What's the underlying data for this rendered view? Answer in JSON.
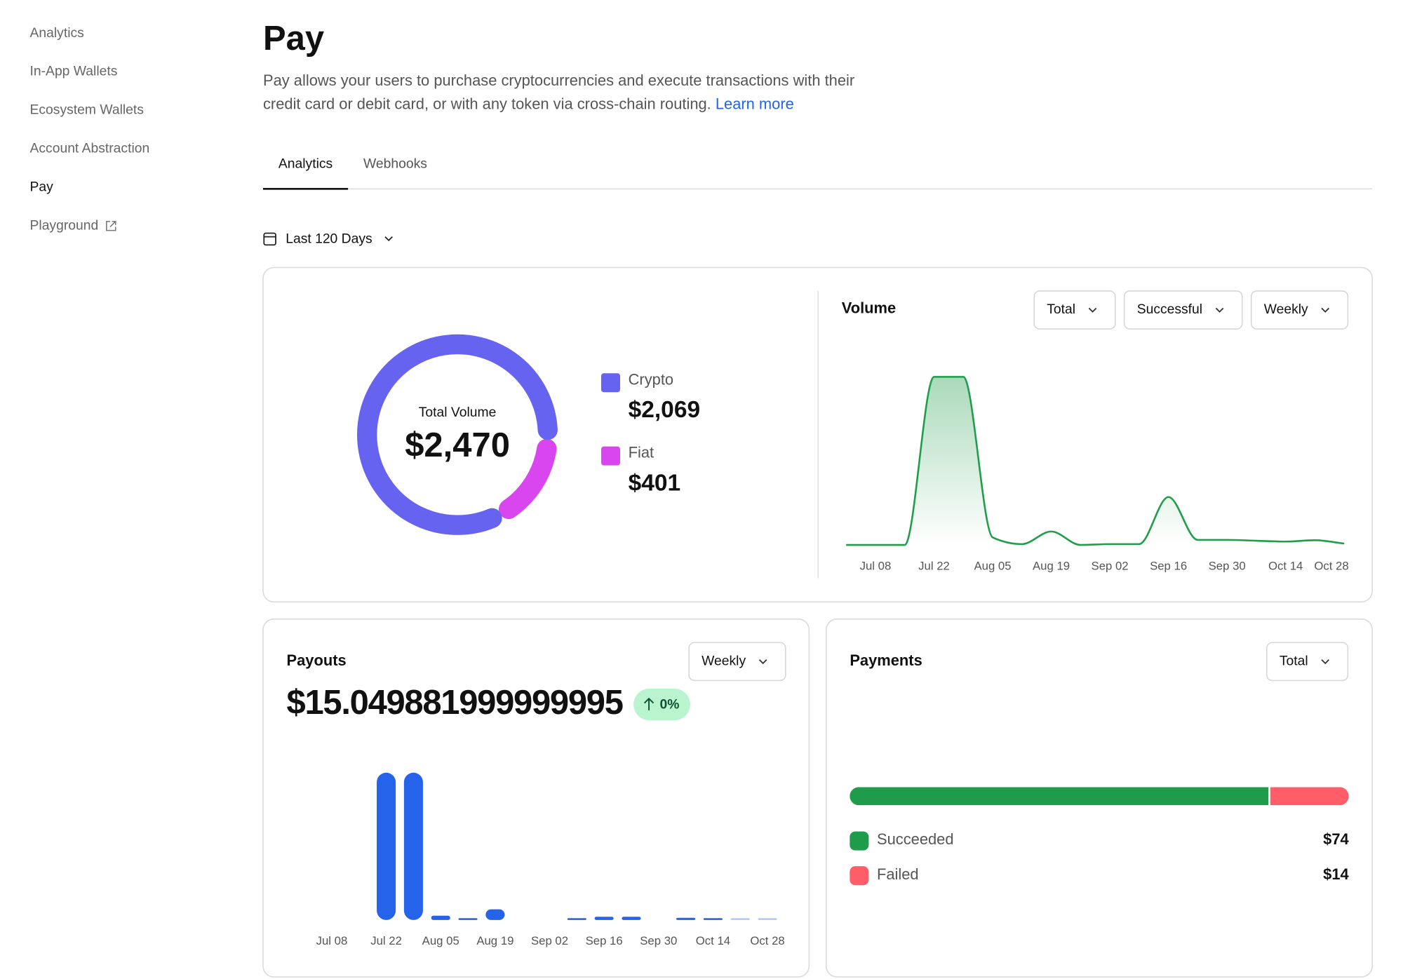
{
  "sidebar": {
    "items": [
      "Analytics",
      "In-App Wallets",
      "Ecosystem Wallets",
      "Account Abstraction",
      "Pay",
      "Playground"
    ],
    "active": 4
  },
  "header": {
    "title": "Pay",
    "description_lines": [
      "Pay allows your users to purchase cryptocurrencies and execute transactions with their",
      "credit card or debit card, or with any token via cross-chain routing."
    ],
    "link": "Learn more"
  },
  "tabs": {
    "items": [
      "Analytics",
      "Webhooks"
    ],
    "active": 0
  },
  "date_range": "Last 120 Days",
  "chart_data": [
    {
      "type": "donut",
      "center_label": "Total Volume",
      "center_value_label": "$2,470",
      "categories": [
        "Crypto",
        "Fiat"
      ],
      "values": [
        2069,
        401
      ],
      "value_labels": [
        "$2,069",
        "$401"
      ],
      "colors": [
        "#6763f1",
        "#d946ef"
      ]
    },
    {
      "type": "area",
      "title": "Volume",
      "controls": [
        "Total",
        "Successful",
        "Weekly"
      ],
      "color": "#1f9d4a",
      "x": [
        null,
        "Jul 08",
        null,
        "Jul 22",
        null,
        "Aug 05",
        null,
        "Aug 19",
        null,
        "Sep 02",
        null,
        "Sep 16",
        null,
        "Sep 30",
        null,
        "Oct 14",
        null,
        "Oct 28"
      ],
      "values": [
        0,
        0,
        0,
        1000,
        1000,
        45,
        5,
        80,
        0,
        5,
        5,
        285,
        30,
        30,
        25,
        20,
        28,
        8
      ]
    },
    {
      "type": "bar",
      "title": "Payouts",
      "controls": [
        "Weekly"
      ],
      "total_label": "$15.049881999999995",
      "change_label": "0%",
      "color": "#2563eb",
      "x": [
        "Jul 08",
        null,
        "Jul 22",
        null,
        "Aug 05",
        null,
        "Aug 19",
        null,
        "Sep 02",
        null,
        "Sep 16",
        null,
        "Sep 30",
        null,
        "Oct 14",
        null,
        "Oct 28"
      ],
      "values": [
        0,
        0,
        6.9,
        6.9,
        0.2,
        0.05,
        0.5,
        0,
        0,
        0.05,
        0.15,
        0.15,
        0,
        0.1,
        0.08,
        0.02,
        0.02
      ]
    },
    {
      "type": "stacked-bar-horizontal",
      "title": "Payments",
      "controls": [
        "Total"
      ],
      "categories": [
        "Succeeded",
        "Failed"
      ],
      "values": [
        74,
        14
      ],
      "value_labels": [
        "$74",
        "$14"
      ],
      "colors": [
        "#1e9b4b",
        "#ff5d67"
      ]
    }
  ]
}
